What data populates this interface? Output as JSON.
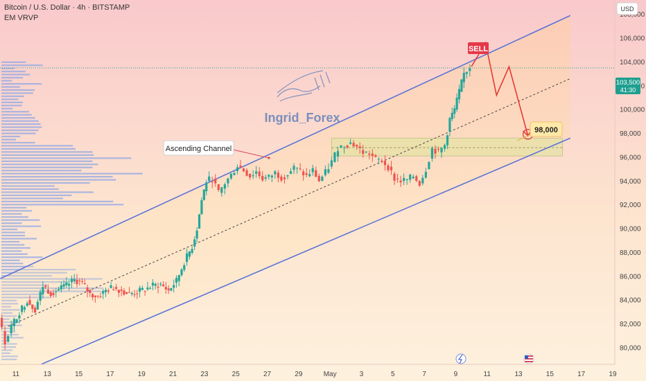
{
  "header": {
    "title": "Bitcoin / U.S. Dollar · 4h · BITSTAMP",
    "indicator": "EM VRVP",
    "currency": "USD"
  },
  "price_tag": {
    "price": "103,500",
    "countdown": "41:30"
  },
  "labels": {
    "sell": "SELL",
    "target": "98,000",
    "channel": "Ascending Channel",
    "watermark": "Ingrid_Forex"
  },
  "colors": {
    "bull": "#26a69a",
    "bear": "#ef5350",
    "channel": "#5b74d6",
    "zone": "#e5e2a6",
    "path": "#e53935",
    "sell_bg": "#e53948",
    "target_bg": "#ffe8a8",
    "watermark": "#5b7db8",
    "price_tag": "#1f9f8f",
    "volume_profile": "#8fa7e6"
  },
  "chart_data": {
    "type": "candlestick",
    "title": "Bitcoin / U.S. Dollar · 4h · BITSTAMP",
    "ylim": [
      78600,
      109200
    ],
    "y_ticks": [
      80000,
      82000,
      84000,
      86000,
      88000,
      90000,
      92000,
      94000,
      96000,
      98000,
      100000,
      102000,
      104000,
      106000,
      108000
    ],
    "y_tick_labels": [
      "80,000",
      "82,000",
      "84,000",
      "86,000",
      "88,000",
      "90,000",
      "92,000",
      "94,000",
      "96,000",
      "98,000",
      "100,000",
      "102,000",
      "104,000",
      "106,000",
      "108,000"
    ],
    "x_ticks": [
      {
        "label": "11",
        "day": 11
      },
      {
        "label": "13",
        "day": 13
      },
      {
        "label": "15",
        "day": 15
      },
      {
        "label": "17",
        "day": 17
      },
      {
        "label": "19",
        "day": 19
      },
      {
        "label": "21",
        "day": 21
      },
      {
        "label": "23",
        "day": 23
      },
      {
        "label": "25",
        "day": 25
      },
      {
        "label": "27",
        "day": 27
      },
      {
        "label": "29",
        "day": 29
      },
      {
        "label": "May",
        "day": 31
      },
      {
        "label": "3",
        "day": 33
      },
      {
        "label": "5",
        "day": 35
      },
      {
        "label": "7",
        "day": 37
      },
      {
        "label": "9",
        "day": 39
      },
      {
        "label": "11",
        "day": 41
      },
      {
        "label": "13",
        "day": 43
      },
      {
        "label": "15",
        "day": 45
      },
      {
        "label": "17",
        "day": 47
      },
      {
        "label": "19",
        "day": 49
      }
    ],
    "close_points": [
      [
        10.0,
        82500
      ],
      [
        10.4,
        80500
      ],
      [
        10.8,
        81800
      ],
      [
        11.3,
        83000
      ],
      [
        11.8,
        84000
      ],
      [
        12.3,
        83200
      ],
      [
        12.8,
        85200
      ],
      [
        13.3,
        84600
      ],
      [
        13.8,
        84900
      ],
      [
        14.3,
        85200
      ],
      [
        14.8,
        85700
      ],
      [
        15.3,
        85400
      ],
      [
        15.8,
        84500
      ],
      [
        16.3,
        84300
      ],
      [
        16.8,
        84800
      ],
      [
        17.3,
        85100
      ],
      [
        17.8,
        84800
      ],
      [
        18.3,
        84500
      ],
      [
        18.8,
        84700
      ],
      [
        19.3,
        84900
      ],
      [
        19.8,
        85200
      ],
      [
        20.3,
        85300
      ],
      [
        20.8,
        84800
      ],
      [
        21.3,
        85600
      ],
      [
        21.8,
        87200
      ],
      [
        22.3,
        88500
      ],
      [
        22.6,
        90000
      ],
      [
        22.9,
        92400
      ],
      [
        23.2,
        94000
      ],
      [
        23.6,
        94200
      ],
      [
        24.0,
        93000
      ],
      [
        24.4,
        93800
      ],
      [
        24.8,
        94500
      ],
      [
        25.2,
        95300
      ],
      [
        25.6,
        94900
      ],
      [
        26.0,
        94400
      ],
      [
        26.4,
        94800
      ],
      [
        26.8,
        94200
      ],
      [
        27.2,
        94300
      ],
      [
        27.6,
        94700
      ],
      [
        28.0,
        94300
      ],
      [
        28.4,
        94600
      ],
      [
        28.8,
        95100
      ],
      [
        29.2,
        94800
      ],
      [
        29.6,
        94400
      ],
      [
        30.0,
        94900
      ],
      [
        30.4,
        94000
      ],
      [
        30.8,
        94700
      ],
      [
        31.2,
        95600
      ],
      [
        31.6,
        96800
      ],
      [
        32.0,
        97000
      ],
      [
        32.4,
        97200
      ],
      [
        32.8,
        96900
      ],
      [
        33.2,
        96400
      ],
      [
        33.6,
        96300
      ],
      [
        34.0,
        95800
      ],
      [
        34.4,
        95700
      ],
      [
        34.8,
        95200
      ],
      [
        35.2,
        94200
      ],
      [
        35.6,
        94000
      ],
      [
        36.0,
        94100
      ],
      [
        36.4,
        94400
      ],
      [
        36.8,
        93800
      ],
      [
        37.2,
        95000
      ],
      [
        37.6,
        96700
      ],
      [
        38.0,
        96400
      ],
      [
        38.4,
        97000
      ],
      [
        38.7,
        99200
      ],
      [
        39.0,
        100000
      ],
      [
        39.3,
        101500
      ],
      [
        39.6,
        103000
      ],
      [
        40.0,
        103600
      ]
    ],
    "projection_path": [
      {
        "day": 40.0,
        "price": 103600
      },
      {
        "day": 40.9,
        "price": 105600
      },
      {
        "day": 41.6,
        "price": 101200
      },
      {
        "day": 42.4,
        "price": 103600
      },
      {
        "day": 43.6,
        "price": 97800
      }
    ],
    "channel_upper": [
      {
        "day": 10.0,
        "price": 85800
      },
      {
        "day": 46.3,
        "price": 107900
      }
    ],
    "channel_lower": [
      {
        "day": 12.6,
        "price": 78600
      },
      {
        "day": 46.3,
        "price": 97600
      }
    ],
    "channel_mid": [
      {
        "day": 10.5,
        "price": 81800
      },
      {
        "day": 46.3,
        "price": 102600
      }
    ],
    "support_zone": {
      "day_start": 31.1,
      "day_end": 45.8,
      "price_low": 96100,
      "price_high": 97600,
      "midline": 96800
    },
    "sell_point": {
      "day": 40.9,
      "price": 105600
    },
    "target_price": 98000,
    "current_price": 103500
  }
}
